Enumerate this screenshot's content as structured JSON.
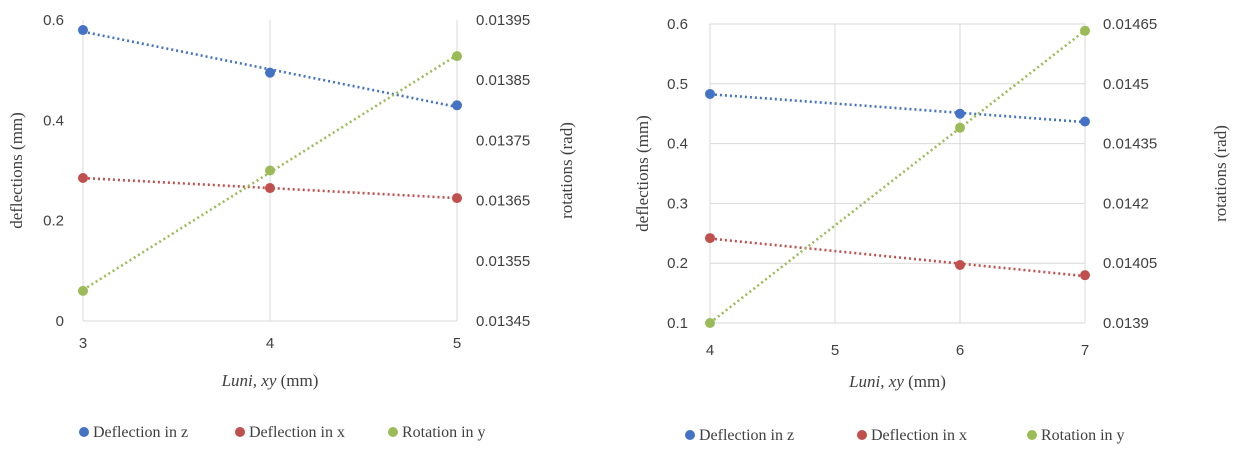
{
  "chart_data": [
    {
      "type": "scatter",
      "xlabel": "Luni, xy (mm)",
      "ylabel": "deflections (mm)",
      "y2label": "rotations (rad)",
      "xticks": [
        "3",
        "4",
        "5"
      ],
      "yticks": [
        "0",
        "0.2",
        "0.4",
        "0.6"
      ],
      "y2ticks": [
        "0.01345",
        "0.01355",
        "0.01365",
        "0.01375",
        "0.01385",
        "0.01395"
      ],
      "xlim": [
        3,
        5
      ],
      "ylim": [
        0,
        0.6
      ],
      "y2lim": [
        0.01345,
        0.01395
      ],
      "grid": "vertical",
      "trendlines": "dotted linear",
      "legend_position": "bottom",
      "series": [
        {
          "name": "Deflection in z",
          "axis": "left",
          "color": "#4472c4",
          "x": [
            3,
            4,
            5
          ],
          "y": [
            0.58,
            0.495,
            0.43
          ]
        },
        {
          "name": "Deflection in x",
          "axis": "left",
          "color": "#c0504d",
          "x": [
            3,
            4,
            5
          ],
          "y": [
            0.285,
            0.265,
            0.245
          ]
        },
        {
          "name": "Rotation in y",
          "axis": "right",
          "color": "#9bbb59",
          "x": [
            3,
            4,
            5
          ],
          "y": [
            0.0135,
            0.0137,
            0.01389
          ]
        }
      ]
    },
    {
      "type": "scatter",
      "xlabel": "Luni, xy (mm)",
      "ylabel": "deflections (mm)",
      "y2label": "rotations (rad)",
      "xticks": [
        "4",
        "5",
        "6",
        "7"
      ],
      "yticks": [
        "0.1",
        "0.2",
        "0.3",
        "0.4",
        "0.5",
        "0.6"
      ],
      "y2ticks": [
        "0.0139",
        "0.01405",
        "0.0142",
        "0.01435",
        "0.0145",
        "0.01465"
      ],
      "xlim": [
        4,
        7
      ],
      "ylim": [
        0.1,
        0.6
      ],
      "y2lim": [
        0.0139,
        0.01465
      ],
      "grid": "both",
      "trendlines": "dotted linear",
      "legend_position": "bottom",
      "series": [
        {
          "name": "Deflection in z",
          "axis": "left",
          "color": "#4472c4",
          "x": [
            4,
            6,
            7
          ],
          "y": [
            0.483,
            0.45,
            0.437
          ]
        },
        {
          "name": "Deflection in x",
          "axis": "left",
          "color": "#c0504d",
          "x": [
            4,
            6,
            7
          ],
          "y": [
            0.242,
            0.197,
            0.18
          ]
        },
        {
          "name": "Rotation in y",
          "axis": "right",
          "color": "#9bbb59",
          "x": [
            4,
            6,
            7
          ],
          "y": [
            0.0139,
            0.01439,
            0.014633
          ]
        }
      ]
    }
  ]
}
